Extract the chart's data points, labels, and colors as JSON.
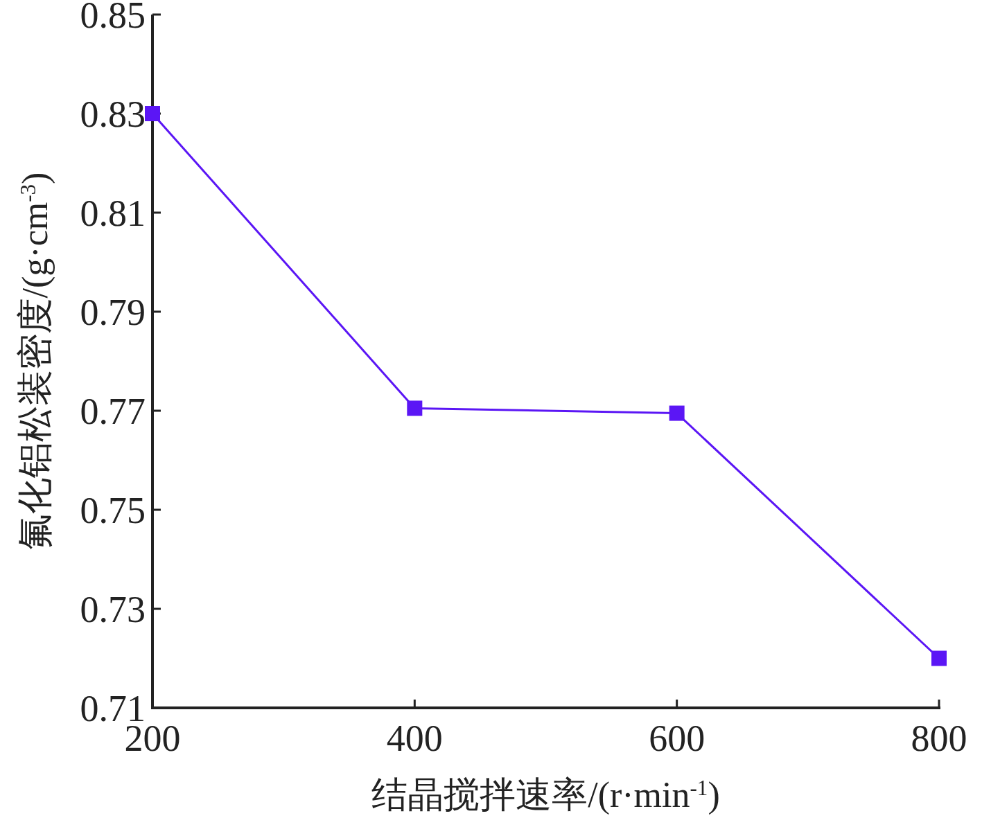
{
  "chart_data": {
    "type": "line",
    "xlabel": "结晶搅拌速率/(r·min$^{-1}$)",
    "ylabel": "氟化铝松装密度/(g·cm$^{-3}$)",
    "x": [
      200,
      400,
      600,
      800
    ],
    "series": [
      {
        "color": "#5b16f5",
        "values": [
          0.83,
          0.7705,
          0.7695,
          0.72
        ]
      }
    ],
    "xlim": [
      200,
      800
    ],
    "xticks": [
      200,
      400,
      600,
      800
    ],
    "ylim": [
      0.71,
      0.85
    ],
    "yticks": [
      {
        "value": 0.71,
        "label": "0.71"
      },
      {
        "value": 0.73,
        "label": "0.73"
      },
      {
        "value": 0.75,
        "label": "0.75"
      },
      {
        "value": 0.77,
        "label": "0.77"
      },
      {
        "value": 0.79,
        "label": "0.79"
      },
      {
        "value": 0.81,
        "label": "0.81"
      },
      {
        "value": 0.83,
        "label": "0.83"
      },
      {
        "value": 0.85,
        "label": "0.85"
      }
    ],
    "grid": false,
    "marker": "square",
    "line_style": "solid"
  }
}
